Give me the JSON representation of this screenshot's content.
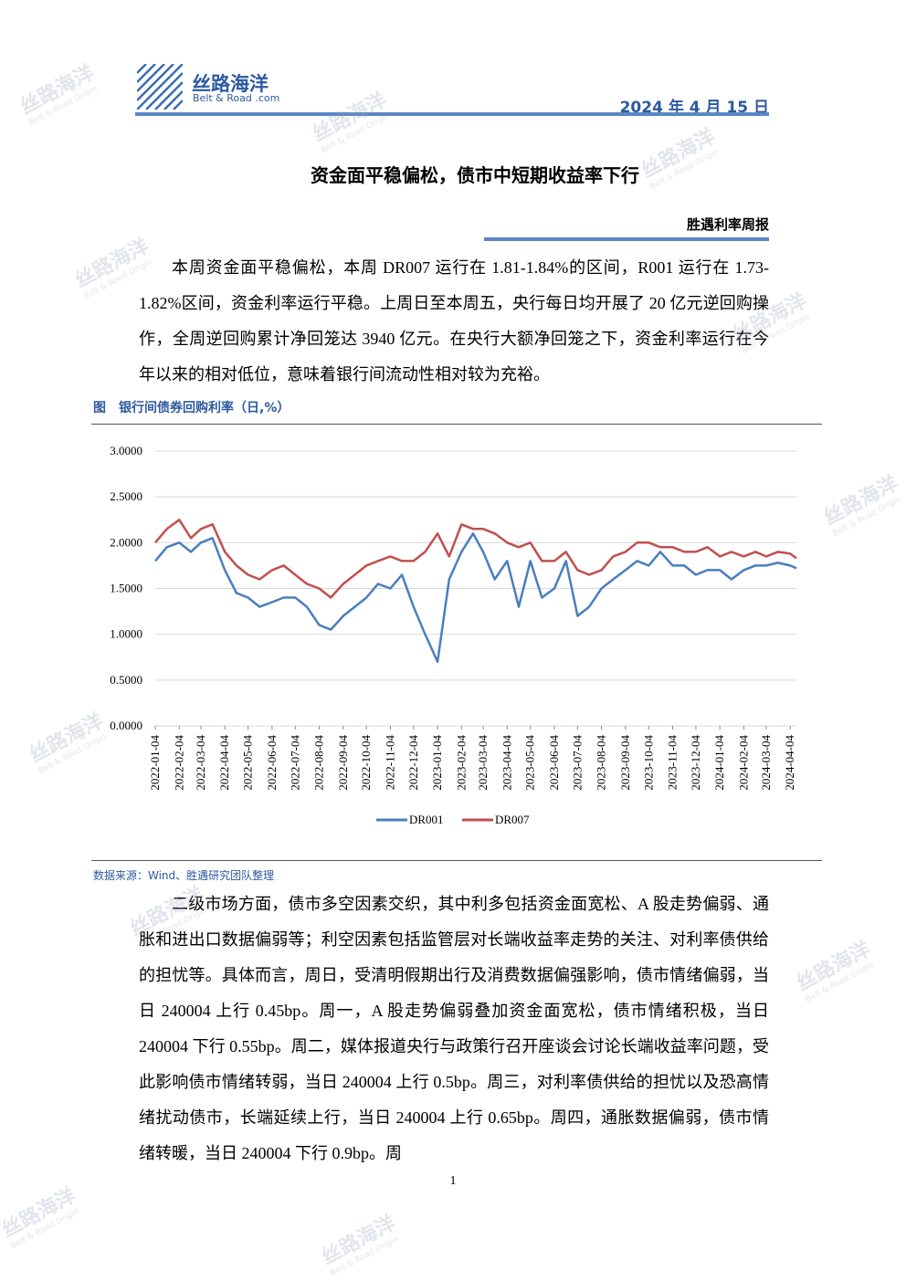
{
  "header": {
    "logo_title": "丝路海洋",
    "logo_subtitle": "Belt & Road .com",
    "date": "2024 年 4 月 15 日"
  },
  "title": "资金面平稳偏松，债市中短期收益率下行",
  "column": "胜遇利率周报",
  "paragraphs": [
    "本周资金面平稳偏松，本周 DR007 运行在 1.81-1.84%的区间，R001 运行在 1.73-1.82%区间，资金利率运行平稳。上周日至本周五，央行每日均开展了 20 亿元逆回购操作，全周逆回购累计净回笼达 3940 亿元。在央行大额净回笼之下，资金利率运行在今年以来的相对低位，意味着银行间流动性相对较为充裕。",
    "二级市场方面，债市多空因素交织，其中利多包括资金面宽松、A 股走势偏弱、通胀和进出口数据偏弱等；利空因素包括监管层对长端收益率走势的关注、对利率债供给的担忧等。具体而言，周日，受清明假期出行及消费数据偏强影响，债市情绪偏弱，当日 240004 上行 0.45bp。周一，A 股走势偏弱叠加资金面宽松，债市情绪积极，当日 240004 下行 0.55bp。周二，媒体报道央行与政策行召开座谈会讨论长端收益率问题，受此影响债市情绪转弱，当日 240004 上行 0.5bp。周三，对利率债供给的担忧以及恐高情绪扰动债市，长端延续上行，当日 240004 上行 0.65bp。周四，通胀数据偏弱，债市情绪转暖，当日 240004 下行 0.9bp。周"
  ],
  "figure_caption": "图　银行间债券回购利率（日,%）",
  "source": "数据来源：Wind、胜遇研究团队整理",
  "page_number": "1",
  "watermark": {
    "title": "丝路海洋",
    "subtitle": "Belt & Road Origin"
  },
  "chart_data": {
    "type": "line",
    "x": [
      "2022-01-04",
      "2022-01-19",
      "2022-02-04",
      "2022-02-19",
      "2022-03-04",
      "2022-03-19",
      "2022-04-04",
      "2022-04-19",
      "2022-05-04",
      "2022-05-19",
      "2022-06-04",
      "2022-06-19",
      "2022-07-04",
      "2022-07-19",
      "2022-08-04",
      "2022-08-19",
      "2022-09-04",
      "2022-09-19",
      "2022-10-04",
      "2022-10-19",
      "2022-11-04",
      "2022-11-19",
      "2022-12-04",
      "2022-12-19",
      "2023-01-04",
      "2023-01-19",
      "2023-02-04",
      "2023-02-19",
      "2023-03-04",
      "2023-03-19",
      "2023-04-04",
      "2023-04-19",
      "2023-05-04",
      "2023-05-19",
      "2023-06-04",
      "2023-06-19",
      "2023-07-04",
      "2023-07-19",
      "2023-08-04",
      "2023-08-19",
      "2023-09-04",
      "2023-09-19",
      "2023-10-04",
      "2023-10-19",
      "2023-11-04",
      "2023-11-19",
      "2023-12-04",
      "2023-12-19",
      "2024-01-04",
      "2024-01-19",
      "2024-02-04",
      "2024-02-19",
      "2024-03-04",
      "2024-03-19",
      "2024-04-04",
      "2024-04-12"
    ],
    "series": [
      {
        "name": "DR001",
        "color": "#4a7ebf",
        "values": [
          1.8,
          1.95,
          2.0,
          1.9,
          2.0,
          2.05,
          1.7,
          1.45,
          1.4,
          1.3,
          1.35,
          1.4,
          1.4,
          1.3,
          1.1,
          1.05,
          1.2,
          1.3,
          1.4,
          1.55,
          1.5,
          1.65,
          1.3,
          1.0,
          0.7,
          1.6,
          1.9,
          2.1,
          1.9,
          1.6,
          1.8,
          1.3,
          1.8,
          1.4,
          1.5,
          1.8,
          1.2,
          1.3,
          1.5,
          1.6,
          1.7,
          1.8,
          1.75,
          1.9,
          1.75,
          1.75,
          1.65,
          1.7,
          1.7,
          1.6,
          1.7,
          1.75,
          1.75,
          1.78,
          1.75,
          1.72
        ]
      },
      {
        "name": "DR007",
        "color": "#c0504d",
        "values": [
          2.0,
          2.15,
          2.25,
          2.05,
          2.15,
          2.2,
          1.9,
          1.75,
          1.65,
          1.6,
          1.7,
          1.75,
          1.65,
          1.55,
          1.5,
          1.4,
          1.55,
          1.65,
          1.75,
          1.8,
          1.85,
          1.8,
          1.8,
          1.9,
          2.1,
          1.85,
          2.2,
          2.15,
          2.15,
          2.1,
          2.0,
          1.95,
          2.0,
          1.8,
          1.8,
          1.9,
          1.7,
          1.65,
          1.7,
          1.85,
          1.9,
          2.0,
          2.0,
          1.95,
          1.95,
          1.9,
          1.9,
          1.95,
          1.85,
          1.9,
          1.85,
          1.9,
          1.85,
          1.9,
          1.88,
          1.83
        ]
      }
    ],
    "ylim": [
      0,
      3
    ],
    "yticks": [
      {
        "value": 0,
        "label": "0.0000"
      },
      {
        "value": 0.5,
        "label": "0.5000"
      },
      {
        "value": 1,
        "label": "1.0000"
      },
      {
        "value": 1.5,
        "label": "1.5000"
      },
      {
        "value": 2,
        "label": "2.0000"
      },
      {
        "value": 2.5,
        "label": "2.5000"
      },
      {
        "value": 3,
        "label": "3.0000"
      }
    ],
    "xlim": [
      "2022-01-04",
      "2024-04-12"
    ],
    "xticks": [
      "2022-01-04",
      "2022-02-04",
      "2022-03-04",
      "2022-04-04",
      "2022-05-04",
      "2022-06-04",
      "2022-07-04",
      "2022-08-04",
      "2022-09-04",
      "2022-10-04",
      "2022-11-04",
      "2022-12-04",
      "2023-01-04",
      "2023-02-04",
      "2023-03-04",
      "2023-04-04",
      "2023-05-04",
      "2023-06-04",
      "2023-07-04",
      "2023-08-04",
      "2023-09-04",
      "2023-10-04",
      "2023-11-04",
      "2023-12-04",
      "2024-01-04",
      "2024-02-04",
      "2024-03-04",
      "2024-04-04"
    ],
    "grid": true,
    "legend": "bottom"
  }
}
